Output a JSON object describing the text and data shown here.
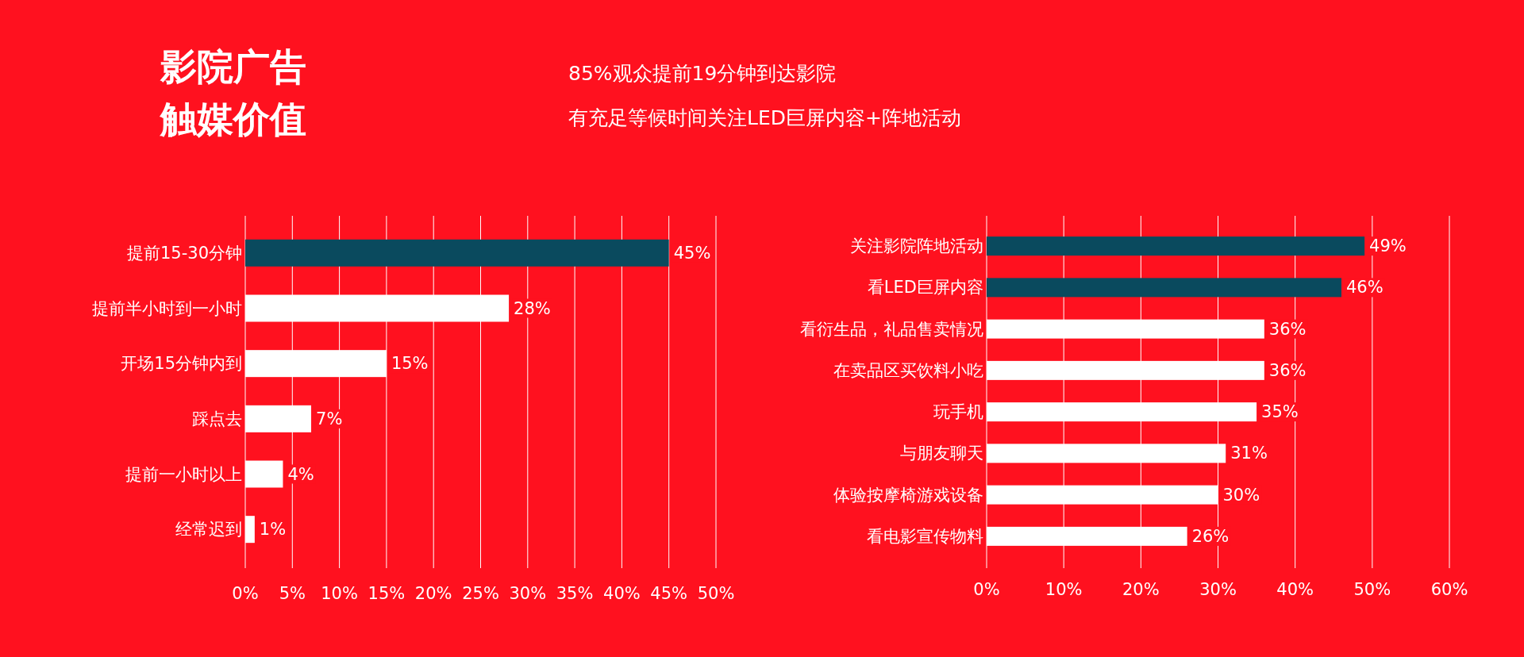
{
  "chart_data": [
    {
      "type": "bar",
      "orientation": "horizontal",
      "title": "影院广告触媒价值",
      "subtitle": "85%观众提前19分钟到达影院",
      "annotations": [
        "有充足等候时间关注LED巨屏内容+阵地活动"
      ],
      "categories": [
        "提前15-30分钟",
        "提前半小时到一小时",
        "开场15分钟内到",
        "踩点去",
        "提前一小时以上",
        "经常迟到"
      ],
      "values": [
        45,
        28,
        15,
        7,
        4,
        1
      ],
      "colors": [
        "#0a4a5e",
        "#ffffff",
        "#ffffff",
        "#ffffff",
        "#ffffff",
        "#ffffff"
      ],
      "value_labels": [
        "45%",
        "28%",
        "15%",
        "7%",
        "4%",
        "1%"
      ],
      "xlim": [
        0,
        50
      ],
      "xticks": [
        {
          "value": 0,
          "label": "0%"
        },
        {
          "value": 5,
          "label": "5%"
        },
        {
          "value": 10,
          "label": "10%"
        },
        {
          "value": 15,
          "label": "15%"
        },
        {
          "value": 20,
          "label": "20%"
        },
        {
          "value": 25,
          "label": "25%"
        },
        {
          "value": 30,
          "label": "30%"
        },
        {
          "value": 35,
          "label": "35%"
        },
        {
          "value": 40,
          "label": "40%"
        },
        {
          "value": 45,
          "label": "45%"
        },
        {
          "value": 50,
          "label": "50%"
        }
      ],
      "grid": "x"
    },
    {
      "type": "bar",
      "orientation": "horizontal",
      "categories": [
        "关注影院阵地活动",
        "看LED巨屏内容",
        "看衍生品，礼品售卖情况",
        "在卖品区买饮料小吃",
        "玩手机",
        "与朋友聊天",
        "体验按摩椅游戏设备",
        "看电影宣传物料"
      ],
      "values": [
        49,
        46,
        36,
        36,
        35,
        31,
        30,
        26
      ],
      "colors": [
        "#0a4a5e",
        "#0a4a5e",
        "#ffffff",
        "#ffffff",
        "#ffffff",
        "#ffffff",
        "#ffffff",
        "#ffffff"
      ],
      "value_labels": [
        "49%",
        "46%",
        "36%",
        "36%",
        "35%",
        "31%",
        "30%",
        "26%"
      ],
      "xlim": [
        0,
        60
      ],
      "xticks": [
        {
          "value": 0,
          "label": "0%"
        },
        {
          "value": 10,
          "label": "10%"
        },
        {
          "value": 20,
          "label": "20%"
        },
        {
          "value": 30,
          "label": "30%"
        },
        {
          "value": 40,
          "label": "40%"
        },
        {
          "value": 50,
          "label": "50%"
        },
        {
          "value": 60,
          "label": "60%"
        }
      ],
      "grid": "x"
    }
  ]
}
